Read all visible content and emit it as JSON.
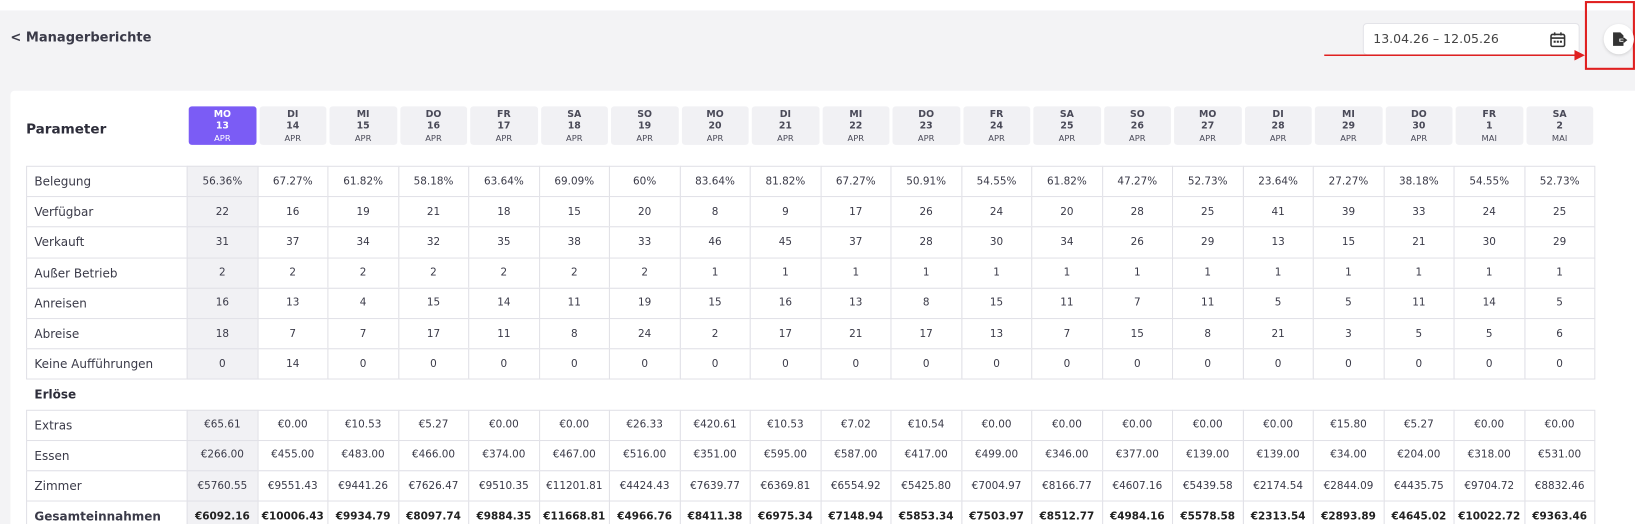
{
  "header": {
    "back": "< Managerberichte",
    "date_range": "13.04.26 – 12.05.26"
  },
  "table": {
    "param_label": "Parameter",
    "columns": [
      [
        "MO",
        "13",
        "APR"
      ],
      [
        "DI",
        "14",
        "APR"
      ],
      [
        "MI",
        "15",
        "APR"
      ],
      [
        "DO",
        "16",
        "APR"
      ],
      [
        "FR",
        "17",
        "APR"
      ],
      [
        "SA",
        "18",
        "APR"
      ],
      [
        "SO",
        "19",
        "APR"
      ],
      [
        "MO",
        "20",
        "APR"
      ],
      [
        "DI",
        "21",
        "APR"
      ],
      [
        "MI",
        "22",
        "APR"
      ],
      [
        "DO",
        "23",
        "APR"
      ],
      [
        "FR",
        "24",
        "APR"
      ],
      [
        "SA",
        "25",
        "APR"
      ],
      [
        "SO",
        "26",
        "APR"
      ],
      [
        "MO",
        "27",
        "APR"
      ],
      [
        "DI",
        "28",
        "APR"
      ],
      [
        "MI",
        "29",
        "APR"
      ],
      [
        "DO",
        "30",
        "APR"
      ],
      [
        "FR",
        "1",
        "MAI"
      ],
      [
        "SA",
        "2",
        "MAI"
      ]
    ],
    "rows": [
      {
        "label": "Belegung",
        "cells": [
          "56.36%",
          "67.27%",
          "61.82%",
          "58.18%",
          "63.64%",
          "69.09%",
          "60%",
          "83.64%",
          "81.82%",
          "67.27%",
          "50.91%",
          "54.55%",
          "61.82%",
          "47.27%",
          "52.73%",
          "23.64%",
          "27.27%",
          "38.18%",
          "54.55%",
          "52.73%"
        ]
      },
      {
        "label": "Verfügbar",
        "cells": [
          "22",
          "16",
          "19",
          "21",
          "18",
          "15",
          "20",
          "8",
          "9",
          "17",
          "26",
          "24",
          "20",
          "28",
          "25",
          "41",
          "39",
          "33",
          "24",
          "25"
        ]
      },
      {
        "label": "Verkauft",
        "cells": [
          "31",
          "37",
          "34",
          "32",
          "35",
          "38",
          "33",
          "46",
          "45",
          "37",
          "28",
          "30",
          "34",
          "26",
          "29",
          "13",
          "15",
          "21",
          "30",
          "29"
        ]
      },
      {
        "label": "Außer Betrieb",
        "cells": [
          "2",
          "2",
          "2",
          "2",
          "2",
          "2",
          "2",
          "1",
          "1",
          "1",
          "1",
          "1",
          "1",
          "1",
          "1",
          "1",
          "1",
          "1",
          "1",
          "1"
        ]
      },
      {
        "label": "Anreisen",
        "cells": [
          "16",
          "13",
          "4",
          "15",
          "14",
          "11",
          "19",
          "15",
          "16",
          "13",
          "8",
          "15",
          "11",
          "7",
          "11",
          "5",
          "5",
          "11",
          "14",
          "5"
        ]
      },
      {
        "label": "Abreise",
        "cells": [
          "18",
          "7",
          "7",
          "17",
          "11",
          "8",
          "24",
          "2",
          "17",
          "21",
          "17",
          "13",
          "7",
          "15",
          "8",
          "21",
          "3",
          "5",
          "5",
          "6"
        ]
      },
      {
        "label": "Keine Aufführungen",
        "cells": [
          "0",
          "14",
          "0",
          "0",
          "0",
          "0",
          "0",
          "0",
          "0",
          "0",
          "0",
          "0",
          "0",
          "0",
          "0",
          "0",
          "0",
          "0",
          "0",
          "0"
        ]
      }
    ],
    "section": "Erlöse",
    "revenue_rows": [
      {
        "label": "Extras",
        "cells": [
          "€65.61",
          "€0.00",
          "€10.53",
          "€5.27",
          "€0.00",
          "€0.00",
          "€26.33",
          "€420.61",
          "€10.53",
          "€7.02",
          "€10.54",
          "€0.00",
          "€0.00",
          "€0.00",
          "€0.00",
          "€0.00",
          "€15.80",
          "€5.27",
          "€0.00",
          "€0.00"
        ]
      },
      {
        "label": "Essen",
        "cells": [
          "€266.00",
          "€455.00",
          "€483.00",
          "€466.00",
          "€374.00",
          "€467.00",
          "€516.00",
          "€351.00",
          "€595.00",
          "€587.00",
          "€417.00",
          "€499.00",
          "€346.00",
          "€377.00",
          "€139.00",
          "€139.00",
          "€34.00",
          "€204.00",
          "€318.00",
          "€531.00"
        ]
      },
      {
        "label": "Zimmer",
        "cells": [
          "€5760.55",
          "€9551.43",
          "€9441.26",
          "€7626.47",
          "€9510.35",
          "€11201.81",
          "€4424.43",
          "€7639.77",
          "€6369.81",
          "€6554.92",
          "€5425.80",
          "€7004.97",
          "€8166.77",
          "€4607.16",
          "€5439.58",
          "€2174.54",
          "€2844.09",
          "€4435.75",
          "€9704.72",
          "€8832.46"
        ]
      },
      {
        "label": "Gesamteinnahmen",
        "cells": [
          "€6092.16",
          "€10006.43",
          "€9934.79",
          "€8097.74",
          "€9884.35",
          "€11668.81",
          "€4966.76",
          "€8411.38",
          "€6975.34",
          "€7148.94",
          "€5853.34",
          "€7503.97",
          "€8512.77",
          "€4984.16",
          "€5578.58",
          "€2313.54",
          "€2893.89",
          "€4645.02",
          "€10022.72",
          "€9363.46"
        ]
      }
    ]
  }
}
